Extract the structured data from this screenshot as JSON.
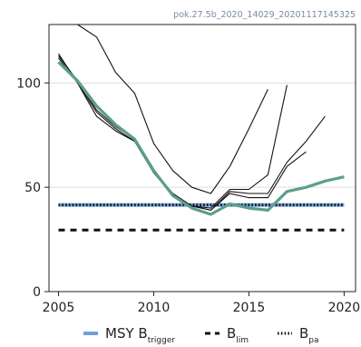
{
  "chart_data": {
    "type": "line",
    "id_label": "pok.27.5b_2020_14029_20201117145325",
    "title": "",
    "xlabel": "",
    "ylabel": "",
    "xlim": [
      2004.5,
      2020.6
    ],
    "ylim": [
      0,
      128
    ],
    "x_ticks": [
      2005,
      2010,
      2015,
      2020
    ],
    "y_ticks": [
      0,
      50,
      100
    ],
    "grid_y": [
      50,
      100
    ],
    "colors": {
      "current": "#5c9e8e",
      "retro": "#111111",
      "msy": "#6fa0dc",
      "lim": "#111111",
      "pa": "#111111",
      "grid": "#dddddd",
      "id_label": "#7a8aa8"
    },
    "reference_lines": [
      {
        "key": "msy",
        "value": 41.5,
        "legend_main": "MSY B",
        "legend_sub": "trigger"
      },
      {
        "key": "lim",
        "value": 29.5,
        "legend_main": "B",
        "legend_sub": "lim"
      },
      {
        "key": "pa",
        "value": 41.5,
        "legend_main": "B",
        "legend_sub": "pa"
      }
    ],
    "current_series": {
      "x": [
        2005,
        2006,
        2007,
        2008,
        2009,
        2010,
        2011,
        2012,
        2013,
        2014,
        2015,
        2016,
        2017,
        2018,
        2019,
        2020
      ],
      "values": [
        110,
        101,
        89,
        80,
        73,
        58,
        46,
        40,
        37,
        42,
        40,
        39,
        48,
        50,
        53,
        55
      ]
    },
    "retro_series": [
      {
        "x": [
          2005,
          2006,
          2007,
          2008,
          2009,
          2010,
          2011,
          2012,
          2013,
          2014,
          2015,
          2016,
          2017,
          2018,
          2019
        ],
        "values": [
          113,
          101,
          87,
          79,
          73,
          58,
          47,
          41,
          39,
          48,
          47,
          47,
          62,
          72,
          84
        ]
      },
      {
        "x": [
          2005,
          2006,
          2007,
          2008,
          2009,
          2010,
          2011,
          2012,
          2013,
          2014,
          2015,
          2016,
          2017,
          2018
        ],
        "values": [
          114,
          100,
          86,
          78,
          72,
          57,
          46,
          41,
          39,
          47,
          45,
          45,
          60,
          67
        ]
      },
      {
        "x": [
          2005,
          2006,
          2007,
          2008,
          2009,
          2010,
          2011,
          2012,
          2013,
          2014,
          2015,
          2016,
          2017
        ],
        "values": [
          112,
          100,
          84,
          77,
          72,
          57,
          46,
          41,
          40,
          49,
          49,
          56,
          99
        ]
      },
      {
        "x": [
          2005,
          2006,
          2007,
          2008,
          2009,
          2010,
          2011,
          2012,
          2013,
          2014,
          2015,
          2016
        ],
        "values": [
          128,
          128,
          122,
          105,
          95,
          71,
          58,
          50,
          47,
          60,
          78,
          97
        ]
      }
    ]
  }
}
